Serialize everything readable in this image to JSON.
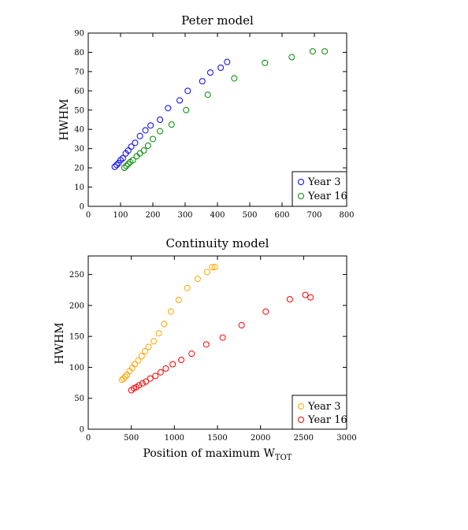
{
  "chart_data": [
    {
      "type": "scatter",
      "title": "Peter model",
      "xlabel": "",
      "ylabel": "HWHM",
      "xlim": [
        0,
        800
      ],
      "ylim": [
        0,
        90
      ],
      "xticks": [
        0,
        100,
        200,
        300,
        400,
        500,
        600,
        700,
        800
      ],
      "yticks": [
        0,
        10,
        20,
        30,
        40,
        50,
        60,
        70,
        80,
        90
      ],
      "legend_position": "bottom-right",
      "grid": false,
      "series": [
        {
          "name": "Year 3",
          "color": "#0000ff",
          "x": [
            82,
            88,
            94,
            100,
            107,
            116,
            124,
            133,
            145,
            160,
            177,
            193,
            222,
            247,
            283,
            308,
            353,
            378,
            410,
            430
          ],
          "y": [
            20.5,
            21.5,
            22.5,
            24,
            25,
            27.5,
            29,
            31,
            33,
            36.5,
            39.5,
            42,
            45,
            51,
            55,
            60,
            65,
            69.5,
            72,
            75
          ]
        },
        {
          "name": "Year 16",
          "color": "#008800",
          "x": [
            112,
            118,
            124,
            130,
            138,
            150,
            160,
            172,
            185,
            200,
            222,
            258,
            303,
            370,
            452,
            547,
            630,
            695,
            732
          ],
          "y": [
            20,
            21,
            22,
            23,
            24,
            26,
            27.5,
            29,
            31.5,
            35,
            39,
            42.5,
            50,
            58,
            66.5,
            74.5,
            77.5,
            80.5,
            80.5
          ]
        }
      ]
    },
    {
      "type": "scatter",
      "title": "Continuity model",
      "xlabel": "Position of maximum W",
      "xlabel_sub": "TOT",
      "ylabel": "HWHM",
      "xlim": [
        0,
        3000
      ],
      "ylim": [
        0,
        280
      ],
      "xticks": [
        0,
        500,
        1000,
        1500,
        2000,
        2500,
        3000
      ],
      "yticks": [
        0,
        50,
        100,
        150,
        200,
        250
      ],
      "legend_position": "bottom-right",
      "grid": false,
      "series": [
        {
          "name": "Year 3",
          "color": "#ffa500",
          "x": [
            390,
            410,
            430,
            450,
            480,
            510,
            540,
            580,
            620,
            660,
            700,
            760,
            820,
            880,
            960,
            1050,
            1150,
            1270,
            1380,
            1440,
            1470
          ],
          "y": [
            80,
            82,
            85,
            88,
            94,
            99,
            105,
            111,
            118,
            126,
            133,
            142,
            155,
            170,
            190,
            209,
            228,
            243,
            254,
            262,
            262
          ]
        },
        {
          "name": "Year 16",
          "color": "#ff0000",
          "x": [
            500,
            530,
            560,
            590,
            630,
            670,
            720,
            780,
            840,
            900,
            980,
            1080,
            1200,
            1370,
            1560,
            1780,
            2060,
            2340,
            2520,
            2580
          ],
          "y": [
            63,
            66,
            68,
            71,
            74,
            77,
            82,
            86,
            92,
            98,
            105,
            112,
            122,
            137,
            148,
            168,
            190,
            210,
            217,
            213
          ]
        }
      ]
    }
  ]
}
